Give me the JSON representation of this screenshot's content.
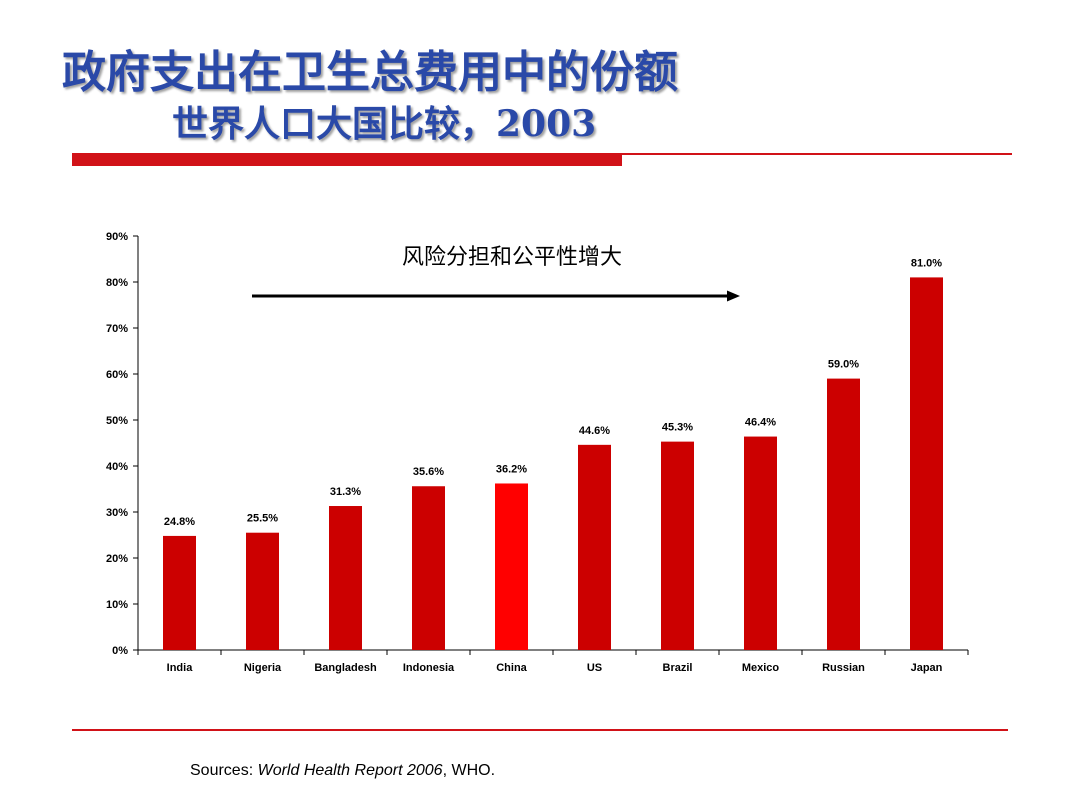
{
  "slide": {
    "title_line1": "政府支出在卫生总费用中的份额",
    "title_line2": "世界人口大国比较，2003",
    "colors": {
      "title": "#2A49A8",
      "rule": "#D11218"
    }
  },
  "chart_data": {
    "type": "bar",
    "categories": [
      "India",
      "Nigeria",
      "Bangladesh",
      "Indonesia",
      "China",
      "US",
      "Brazil",
      "Mexico",
      "Russian",
      "Japan"
    ],
    "values": [
      24.8,
      25.5,
      31.3,
      35.6,
      36.2,
      44.6,
      45.3,
      46.4,
      59.0,
      81.0
    ],
    "value_labels": [
      "24.8%",
      "25.5%",
      "31.3%",
      "35.6%",
      "36.2%",
      "44.6%",
      "45.3%",
      "46.4%",
      "59.0%",
      "81.0%"
    ],
    "ylim": [
      0,
      90
    ],
    "yticks": [
      "0%",
      "10%",
      "20%",
      "30%",
      "40%",
      "50%",
      "60%",
      "70%",
      "80%",
      "90%"
    ],
    "grid": false,
    "bar_color": "#CC0000",
    "highlight_category": "China",
    "highlight_color": "#FF0000",
    "annotation": {
      "text": "风险分担和公平性增大",
      "arrow": "left-to-right"
    }
  },
  "source": {
    "prefix": "Sources: ",
    "report": "World Health Report 2006",
    "suffix": ", WHO."
  }
}
